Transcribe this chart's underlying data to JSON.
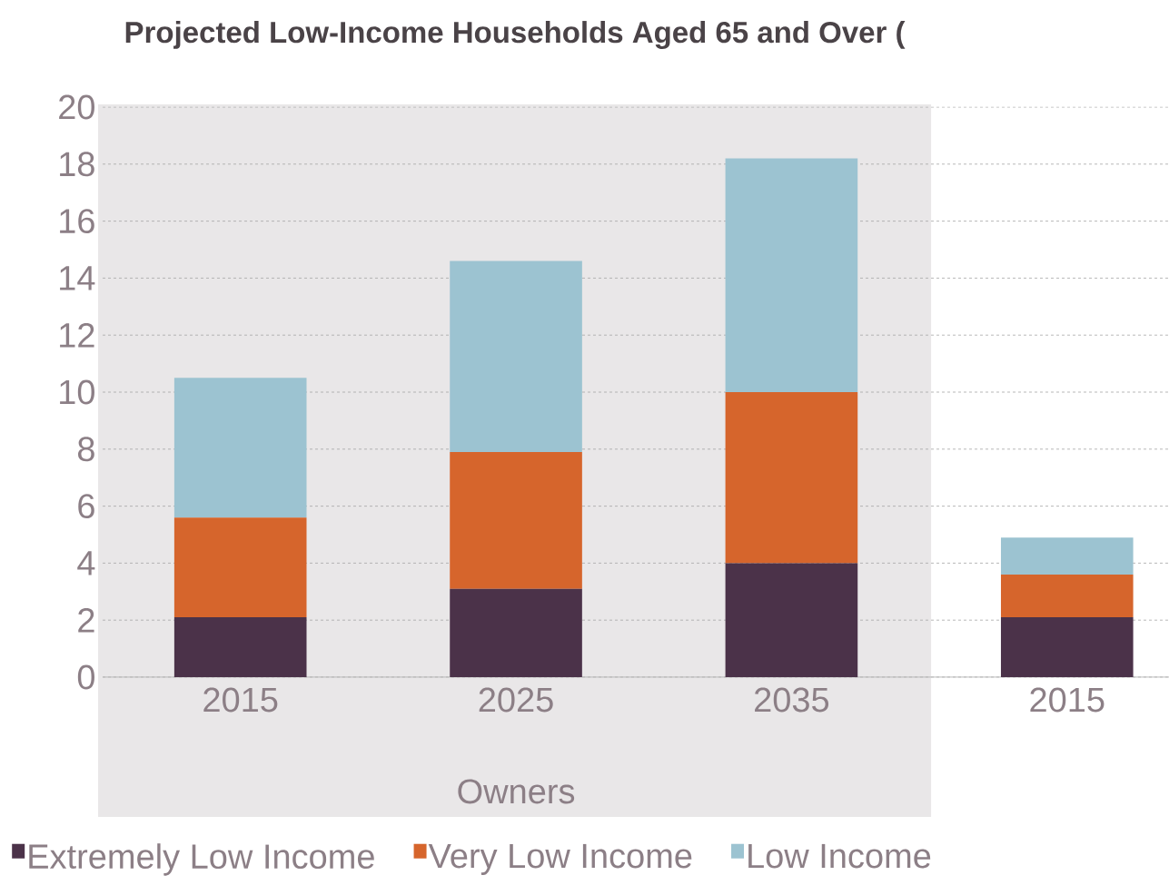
{
  "chart_data": {
    "type": "bar",
    "title": "Projected Low-Income Households Aged 65 and Over (",
    "categories": [
      "2015",
      "2025",
      "2035",
      "2015"
    ],
    "stacked": true,
    "series": [
      {
        "name": "Extremely Low Income",
        "color": "#4b3249",
        "values": [
          2.1,
          3.1,
          4.0,
          2.1
        ]
      },
      {
        "name": "Very Low Income",
        "color": "#d6652c",
        "values": [
          3.5,
          4.8,
          6.0,
          1.5
        ]
      },
      {
        "name": "Low Income",
        "color": "#9cc3d1",
        "values": [
          4.9,
          6.7,
          8.2,
          1.3
        ]
      }
    ],
    "ylim": [
      0,
      20
    ],
    "yticks": [
      0,
      2,
      4,
      6,
      8,
      10,
      12,
      14,
      16,
      18,
      20
    ],
    "grid": "y",
    "legend": "bottom",
    "bands": [
      {
        "axis": "x",
        "from": "2015",
        "to": "2035",
        "label": "Owners",
        "color": "#e9e7e8"
      }
    ]
  }
}
